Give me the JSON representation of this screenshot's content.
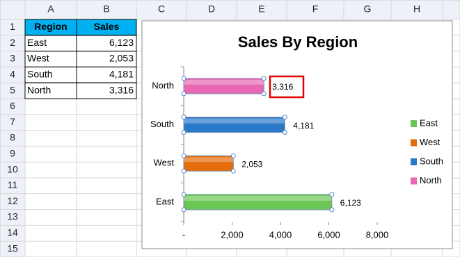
{
  "sheet": {
    "columns": [
      "A",
      "B",
      "C",
      "D",
      "E",
      "F",
      "G",
      "H"
    ],
    "rows": [
      "1",
      "2",
      "3",
      "4",
      "5",
      "6",
      "7",
      "8",
      "9",
      "10",
      "11",
      "12",
      "13",
      "14",
      "15"
    ],
    "table": {
      "header": [
        "Region",
        "Sales"
      ],
      "rows": [
        [
          "East",
          "6,123"
        ],
        [
          "West",
          "2,053"
        ],
        [
          "South",
          "4,181"
        ],
        [
          "North",
          "3,316"
        ]
      ]
    }
  },
  "chart_data": {
    "type": "bar",
    "orientation": "horizontal",
    "title": "Sales By Region",
    "categories": [
      "East",
      "West",
      "South",
      "North"
    ],
    "values": [
      6123,
      2053,
      4181,
      3316
    ],
    "value_labels": [
      "6,123",
      "2,053",
      "4,181",
      "3,316"
    ],
    "colors": [
      "#6cc655",
      "#e46c0a",
      "#2a78c8",
      "#e968b4"
    ],
    "xlim": [
      0,
      8000
    ],
    "xticks": [
      {
        "value": 0,
        "label": "-"
      },
      {
        "value": 2000,
        "label": "2,000"
      },
      {
        "value": 4000,
        "label": "4,000"
      },
      {
        "value": 6000,
        "label": "6,000"
      },
      {
        "value": 8000,
        "label": "8,000"
      }
    ],
    "legend": "right"
  }
}
